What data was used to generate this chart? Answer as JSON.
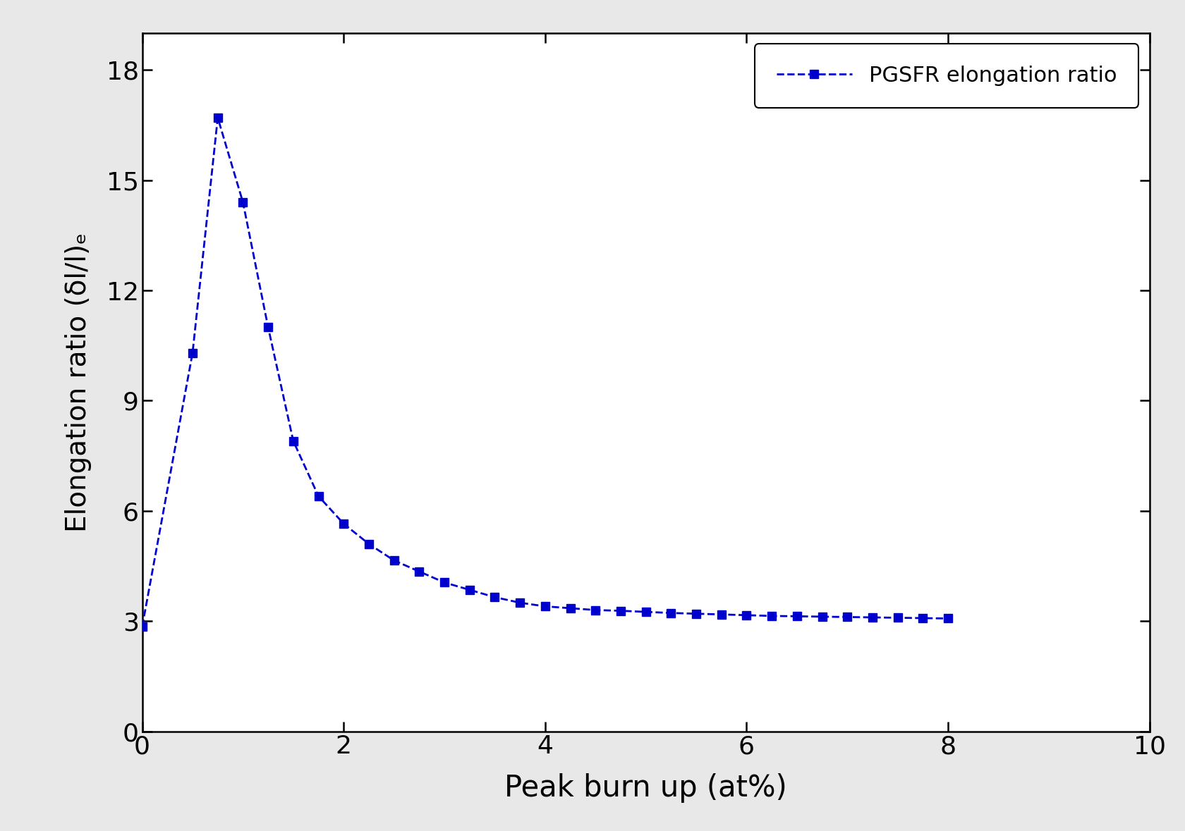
{
  "x": [
    0.0,
    0.5,
    0.75,
    1.0,
    1.25,
    1.5,
    1.75,
    2.0,
    2.25,
    2.5,
    2.75,
    3.0,
    3.25,
    3.5,
    3.75,
    4.0,
    4.25,
    4.5,
    4.75,
    5.0,
    5.25,
    5.5,
    5.75,
    6.0,
    6.25,
    6.5,
    6.75,
    7.0,
    7.25,
    7.5,
    7.75,
    8.0
  ],
  "y": [
    2.85,
    10.3,
    16.7,
    14.4,
    11.0,
    7.9,
    6.4,
    5.65,
    5.1,
    4.65,
    4.35,
    4.05,
    3.85,
    3.65,
    3.5,
    3.4,
    3.35,
    3.3,
    3.28,
    3.25,
    3.22,
    3.2,
    3.18,
    3.16,
    3.14,
    3.13,
    3.12,
    3.11,
    3.1,
    3.09,
    3.08,
    3.07
  ],
  "line_color": "#0000CC",
  "marker": "s",
  "markersize": 9,
  "linewidth": 2.0,
  "linestyle": "--",
  "legend_label": "PGSFR elongation ratio",
  "xlabel": "Peak burn up (at%)",
  "ylabel": "Elongation ratio (δl/l)ₑ",
  "xlim": [
    0,
    10
  ],
  "ylim": [
    0,
    19
  ],
  "xticks": [
    0,
    2,
    4,
    6,
    8,
    10
  ],
  "yticks": [
    0,
    3,
    6,
    9,
    12,
    15,
    18
  ],
  "xlabel_fontsize": 30,
  "ylabel_fontsize": 28,
  "tick_fontsize": 26,
  "legend_fontsize": 22,
  "plot_bgcolor": "#ffffff",
  "fig_bgcolor": "#e8e8e8"
}
